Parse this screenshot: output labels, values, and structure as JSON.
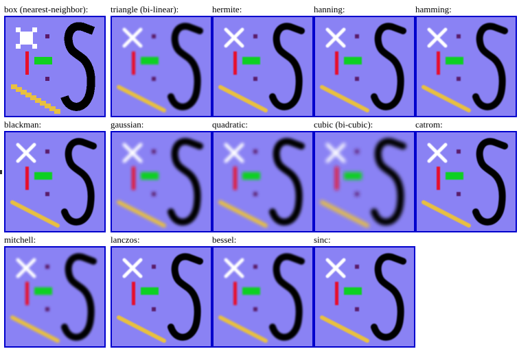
{
  "filters": [
    {
      "name": "box",
      "label": "box (nearest-neighbor):",
      "pixelated": true,
      "blur": 0
    },
    {
      "name": "triangle",
      "label": "triangle (bi-linear):",
      "pixelated": false,
      "blur": 1.2
    },
    {
      "name": "hermite",
      "label": "hermite:",
      "pixelated": false,
      "blur": 0.9
    },
    {
      "name": "hanning",
      "label": "hanning:",
      "pixelated": false,
      "blur": 0.9
    },
    {
      "name": "hamming",
      "label": "hamming:",
      "pixelated": false,
      "blur": 0.9
    },
    {
      "name": "blackman",
      "label": "blackman:",
      "pixelated": false,
      "blur": 0.6
    },
    {
      "name": "gaussian",
      "label": "gaussian:",
      "pixelated": false,
      "blur": 2.2
    },
    {
      "name": "quadratic",
      "label": "quadratic:",
      "pixelated": false,
      "blur": 2.0
    },
    {
      "name": "cubic",
      "label": "cubic (bi-cubic):",
      "pixelated": false,
      "blur": 2.6
    },
    {
      "name": "catrom",
      "label": "catrom:",
      "pixelated": false,
      "blur": 0.6
    },
    {
      "name": "mitchell",
      "label": "mitchell:",
      "pixelated": false,
      "blur": 1.5
    },
    {
      "name": "lanczos",
      "label": "lanczos:",
      "pixelated": false,
      "blur": 0.8
    },
    {
      "name": "bessel",
      "label": "bessel:",
      "pixelated": false,
      "blur": 1.2
    },
    {
      "name": "sinc",
      "label": "sinc:",
      "pixelated": false,
      "blur": 0.8
    }
  ],
  "colors": {
    "thumb_background": "#8a82f4",
    "thumb_border": "#0000cc",
    "cross": "#ffffff",
    "red_bar": "#e8102a",
    "green_bar": "#10d020",
    "dots": "#5a1a6a",
    "yellow_line": "#e8c040",
    "digit": "#000000"
  },
  "icons": [
    "white-cross-icon",
    "red-bar-icon",
    "green-bar-icon",
    "purple-dot-icon",
    "yellow-line-icon",
    "digit-five-icon"
  ]
}
